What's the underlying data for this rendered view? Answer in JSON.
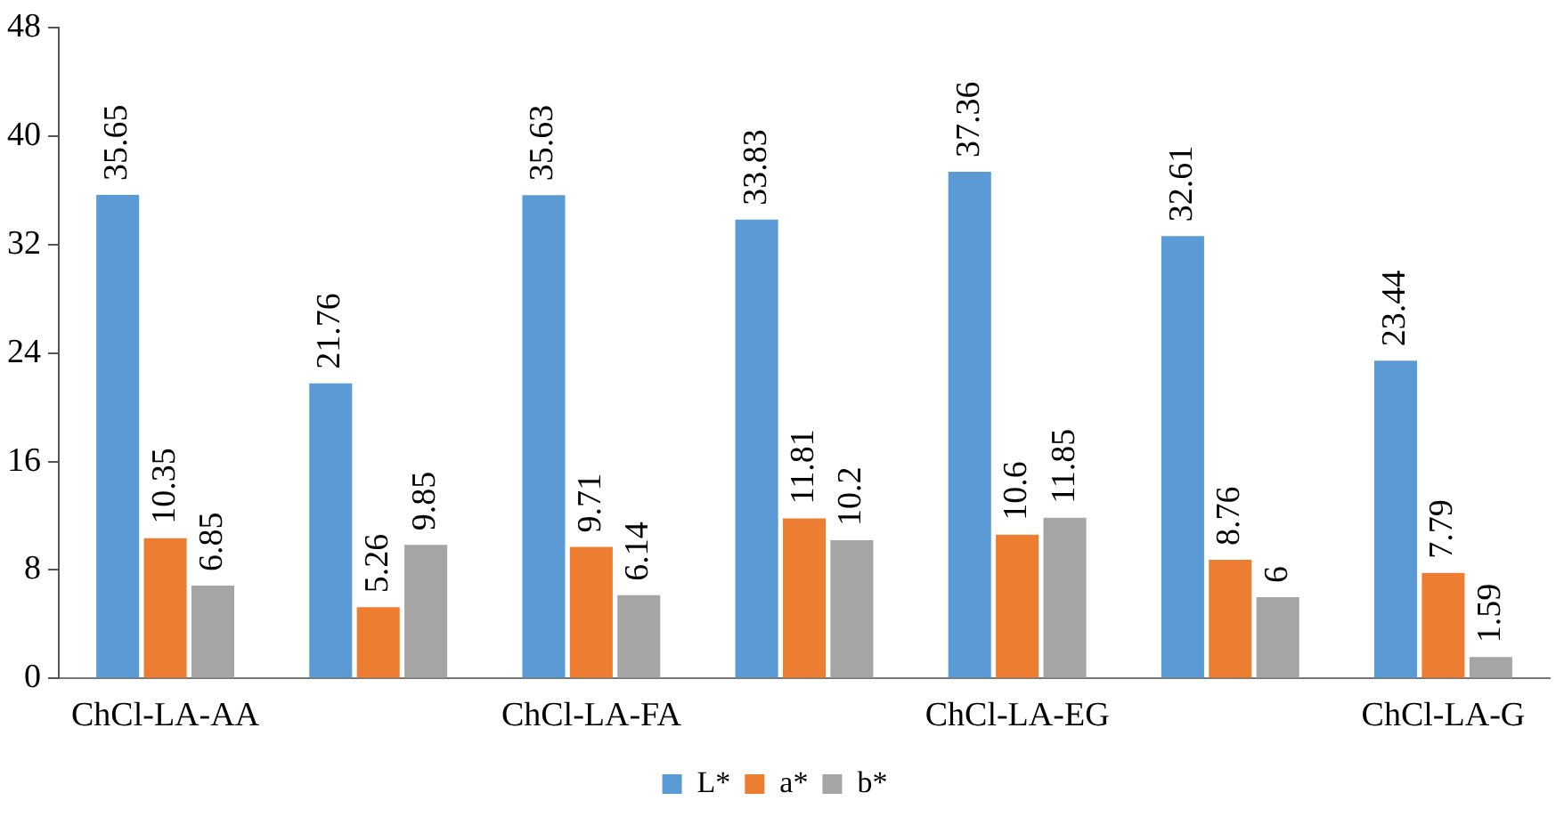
{
  "chart_data": {
    "type": "bar",
    "categories": [
      "ChCl-LA-AA",
      null,
      "ChCl-LA-FA",
      null,
      "ChCl-LA-EG",
      null,
      "ChCl-LA-G"
    ],
    "series": [
      {
        "name": "L*",
        "color": "#5b9bd5",
        "values": [
          35.65,
          21.76,
          35.63,
          33.83,
          37.36,
          32.61,
          23.44
        ]
      },
      {
        "name": "a*",
        "color": "#ed7d31",
        "values": [
          10.35,
          5.26,
          9.71,
          11.81,
          10.6,
          8.76,
          7.79
        ]
      },
      {
        "name": "b*",
        "color": "#a5a5a5",
        "values": [
          6.85,
          9.85,
          6.14,
          10.2,
          11.85,
          6,
          1.59
        ]
      }
    ],
    "ylim": [
      0,
      48
    ],
    "yticks": [
      0,
      8,
      16,
      24,
      32,
      40,
      48
    ],
    "grid": false,
    "legend": "bottom",
    "data_labels": true
  }
}
